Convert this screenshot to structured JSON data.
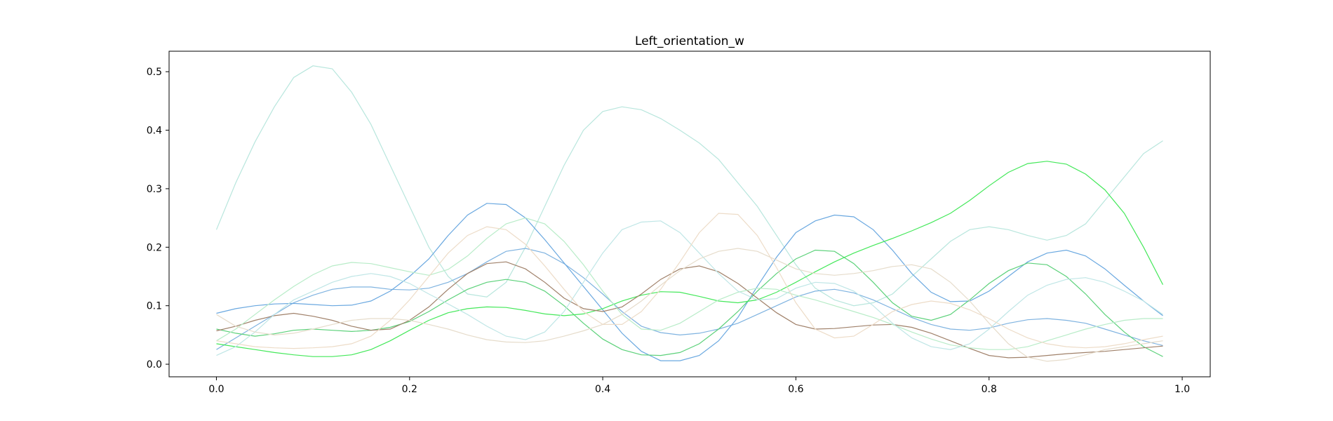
{
  "chart_data": {
    "type": "line",
    "title": "Left_orientation_w",
    "xlabel": "",
    "ylabel": "",
    "xlim": [
      -0.049,
      1.029
    ],
    "ylim": [
      -0.0215,
      0.535
    ],
    "grid": false,
    "xticks": [
      "0.0",
      "0.2",
      "0.4",
      "0.6",
      "0.8",
      "1.0"
    ],
    "yticks": [
      "0.0",
      "0.1",
      "0.2",
      "0.3",
      "0.4",
      "0.5"
    ],
    "x": [
      0.0,
      0.02,
      0.04,
      0.06,
      0.08,
      0.1,
      0.12,
      0.14,
      0.16,
      0.18,
      0.2,
      0.22,
      0.24,
      0.26,
      0.28,
      0.3,
      0.32,
      0.34,
      0.36,
      0.38,
      0.4,
      0.42,
      0.44,
      0.46,
      0.48,
      0.5,
      0.52,
      0.54,
      0.56,
      0.58,
      0.6,
      0.62,
      0.64,
      0.66,
      0.68,
      0.7,
      0.72,
      0.74,
      0.76,
      0.78,
      0.8,
      0.82,
      0.84,
      0.86,
      0.88,
      0.9,
      0.92,
      0.94,
      0.96,
      0.98
    ],
    "series": [
      {
        "color": "#b8e6dd",
        "values": [
          0.23,
          0.31,
          0.38,
          0.44,
          0.49,
          0.51,
          0.505,
          0.465,
          0.41,
          0.34,
          0.27,
          0.2,
          0.15,
          0.12,
          0.115,
          0.14,
          0.2,
          0.27,
          0.34,
          0.4,
          0.432,
          0.44,
          0.435,
          0.42,
          0.4,
          0.378,
          0.35,
          0.31,
          0.27,
          0.22,
          0.17,
          0.13,
          0.11,
          0.1,
          0.105,
          0.12,
          0.15,
          0.18,
          0.21,
          0.23,
          0.235,
          0.23,
          0.22,
          0.212,
          0.22,
          0.24,
          0.28,
          0.32,
          0.36,
          0.382
        ]
      },
      {
        "color": "#7fb3e0",
        "values": [
          0.025,
          0.045,
          0.065,
          0.085,
          0.105,
          0.118,
          0.128,
          0.132,
          0.132,
          0.128,
          0.127,
          0.13,
          0.14,
          0.155,
          0.175,
          0.193,
          0.198,
          0.19,
          0.172,
          0.148,
          0.12,
          0.09,
          0.065,
          0.054,
          0.05,
          0.053,
          0.06,
          0.07,
          0.085,
          0.1,
          0.115,
          0.125,
          0.128,
          0.122,
          0.11,
          0.095,
          0.08,
          0.068,
          0.06,
          0.058,
          0.062,
          0.07,
          0.076,
          0.078,
          0.075,
          0.07,
          0.06,
          0.05,
          0.04,
          0.032
        ]
      },
      {
        "color": "#6aa8e0",
        "values": [
          0.087,
          0.095,
          0.1,
          0.103,
          0.104,
          0.102,
          0.1,
          0.101,
          0.108,
          0.125,
          0.15,
          0.18,
          0.22,
          0.255,
          0.275,
          0.273,
          0.25,
          0.213,
          0.173,
          0.133,
          0.093,
          0.053,
          0.022,
          0.006,
          0.006,
          0.015,
          0.04,
          0.08,
          0.133,
          0.183,
          0.225,
          0.245,
          0.255,
          0.252,
          0.23,
          0.195,
          0.155,
          0.123,
          0.107,
          0.108,
          0.125,
          0.15,
          0.175,
          0.19,
          0.195,
          0.185,
          0.163,
          0.135,
          0.108,
          0.083
        ]
      },
      {
        "color": "#5cd17a",
        "values": [
          0.06,
          0.053,
          0.048,
          0.052,
          0.058,
          0.06,
          0.058,
          0.056,
          0.058,
          0.063,
          0.073,
          0.09,
          0.11,
          0.128,
          0.14,
          0.145,
          0.14,
          0.125,
          0.1,
          0.07,
          0.043,
          0.025,
          0.016,
          0.015,
          0.02,
          0.035,
          0.06,
          0.09,
          0.125,
          0.155,
          0.18,
          0.195,
          0.193,
          0.172,
          0.14,
          0.105,
          0.082,
          0.075,
          0.085,
          0.11,
          0.138,
          0.16,
          0.173,
          0.17,
          0.15,
          0.12,
          0.085,
          0.055,
          0.03,
          0.013
        ]
      },
      {
        "color": "#44e85a",
        "values": [
          0.035,
          0.03,
          0.025,
          0.02,
          0.016,
          0.013,
          0.013,
          0.016,
          0.025,
          0.04,
          0.058,
          0.075,
          0.088,
          0.095,
          0.098,
          0.097,
          0.092,
          0.086,
          0.083,
          0.086,
          0.095,
          0.108,
          0.118,
          0.124,
          0.123,
          0.116,
          0.108,
          0.105,
          0.11,
          0.123,
          0.14,
          0.158,
          0.175,
          0.19,
          0.203,
          0.215,
          0.228,
          0.242,
          0.258,
          0.28,
          0.305,
          0.328,
          0.343,
          0.347,
          0.342,
          0.325,
          0.298,
          0.258,
          0.2,
          0.136
        ]
      },
      {
        "color": "#a0816a",
        "values": [
          0.057,
          0.065,
          0.075,
          0.083,
          0.087,
          0.082,
          0.075,
          0.065,
          0.058,
          0.06,
          0.075,
          0.098,
          0.128,
          0.155,
          0.172,
          0.175,
          0.163,
          0.14,
          0.113,
          0.095,
          0.09,
          0.098,
          0.12,
          0.145,
          0.163,
          0.168,
          0.158,
          0.138,
          0.113,
          0.088,
          0.068,
          0.06,
          0.061,
          0.064,
          0.067,
          0.068,
          0.063,
          0.053,
          0.04,
          0.027,
          0.015,
          0.011,
          0.012,
          0.015,
          0.018,
          0.02,
          0.022,
          0.025,
          0.028,
          0.031
        ]
      },
      {
        "color": "#b8ecc8",
        "values": [
          0.04,
          0.06,
          0.085,
          0.11,
          0.133,
          0.153,
          0.168,
          0.174,
          0.172,
          0.165,
          0.158,
          0.152,
          0.162,
          0.185,
          0.215,
          0.24,
          0.25,
          0.24,
          0.21,
          0.17,
          0.125,
          0.085,
          0.06,
          0.058,
          0.07,
          0.09,
          0.11,
          0.123,
          0.13,
          0.128,
          0.118,
          0.11,
          0.1,
          0.09,
          0.08,
          0.068,
          0.055,
          0.043,
          0.033,
          0.028,
          0.025,
          0.025,
          0.03,
          0.04,
          0.05,
          0.06,
          0.068,
          0.075,
          0.078,
          0.078
        ]
      },
      {
        "color": "#bfe6e6",
        "values": [
          0.015,
          0.03,
          0.055,
          0.085,
          0.11,
          0.125,
          0.14,
          0.15,
          0.155,
          0.15,
          0.138,
          0.12,
          0.103,
          0.085,
          0.065,
          0.048,
          0.042,
          0.055,
          0.09,
          0.14,
          0.19,
          0.23,
          0.243,
          0.245,
          0.225,
          0.19,
          0.155,
          0.125,
          0.11,
          0.112,
          0.13,
          0.14,
          0.138,
          0.125,
          0.1,
          0.07,
          0.045,
          0.03,
          0.025,
          0.035,
          0.06,
          0.09,
          0.118,
          0.135,
          0.145,
          0.148,
          0.14,
          0.125,
          0.108,
          0.085
        ]
      },
      {
        "color": "#e6dccb",
        "values": [
          0.085,
          0.065,
          0.055,
          0.05,
          0.053,
          0.06,
          0.068,
          0.075,
          0.078,
          0.078,
          0.075,
          0.068,
          0.06,
          0.05,
          0.042,
          0.038,
          0.037,
          0.04,
          0.048,
          0.057,
          0.068,
          0.085,
          0.108,
          0.135,
          0.16,
          0.18,
          0.193,
          0.198,
          0.193,
          0.178,
          0.163,
          0.155,
          0.152,
          0.155,
          0.16,
          0.167,
          0.17,
          0.163,
          0.14,
          0.108,
          0.07,
          0.035,
          0.012,
          0.005,
          0.008,
          0.016,
          0.025,
          0.03,
          0.035,
          0.04
        ]
      },
      {
        "color": "#eddcc8",
        "values": [
          0.04,
          0.035,
          0.03,
          0.028,
          0.027,
          0.028,
          0.03,
          0.035,
          0.048,
          0.075,
          0.11,
          0.15,
          0.19,
          0.22,
          0.235,
          0.23,
          0.205,
          0.168,
          0.128,
          0.09,
          0.068,
          0.068,
          0.09,
          0.128,
          0.175,
          0.225,
          0.258,
          0.256,
          0.22,
          0.165,
          0.105,
          0.06,
          0.045,
          0.048,
          0.068,
          0.09,
          0.102,
          0.108,
          0.104,
          0.093,
          0.078,
          0.06,
          0.045,
          0.035,
          0.03,
          0.028,
          0.03,
          0.035,
          0.042,
          0.048
        ]
      }
    ]
  }
}
